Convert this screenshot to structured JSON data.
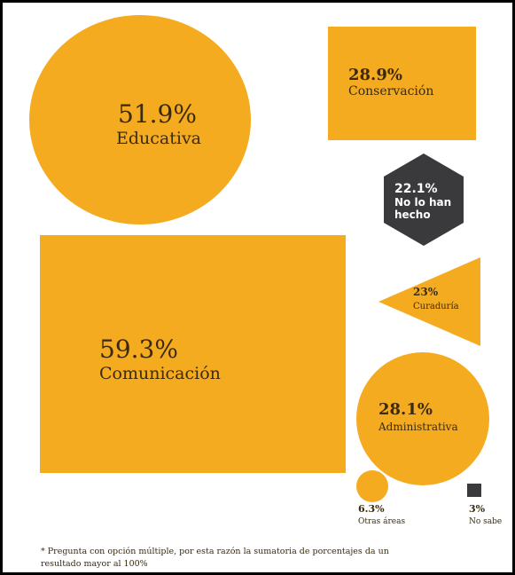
{
  "items": [
    {
      "value": "51.9%",
      "label": "Educativa"
    },
    {
      "value": "28.9%",
      "label": "Conservación"
    },
    {
      "value": "22.1%",
      "label": [
        "No lo han",
        "hecho"
      ]
    },
    {
      "value": "59.3%",
      "label": "Comunicación"
    },
    {
      "value": "23%",
      "label": "Curaduría"
    },
    {
      "value": "28.1%",
      "label": "Administrativa"
    },
    {
      "value": "6.3%",
      "label": "Otras áreas"
    },
    {
      "value": "3%",
      "label": "No sabe"
    }
  ],
  "footnote": [
    "* Pregunta con opción múltiple, por esta razón la sumatoria de porcentajes da un",
    "resultado mayor al 100%"
  ]
}
